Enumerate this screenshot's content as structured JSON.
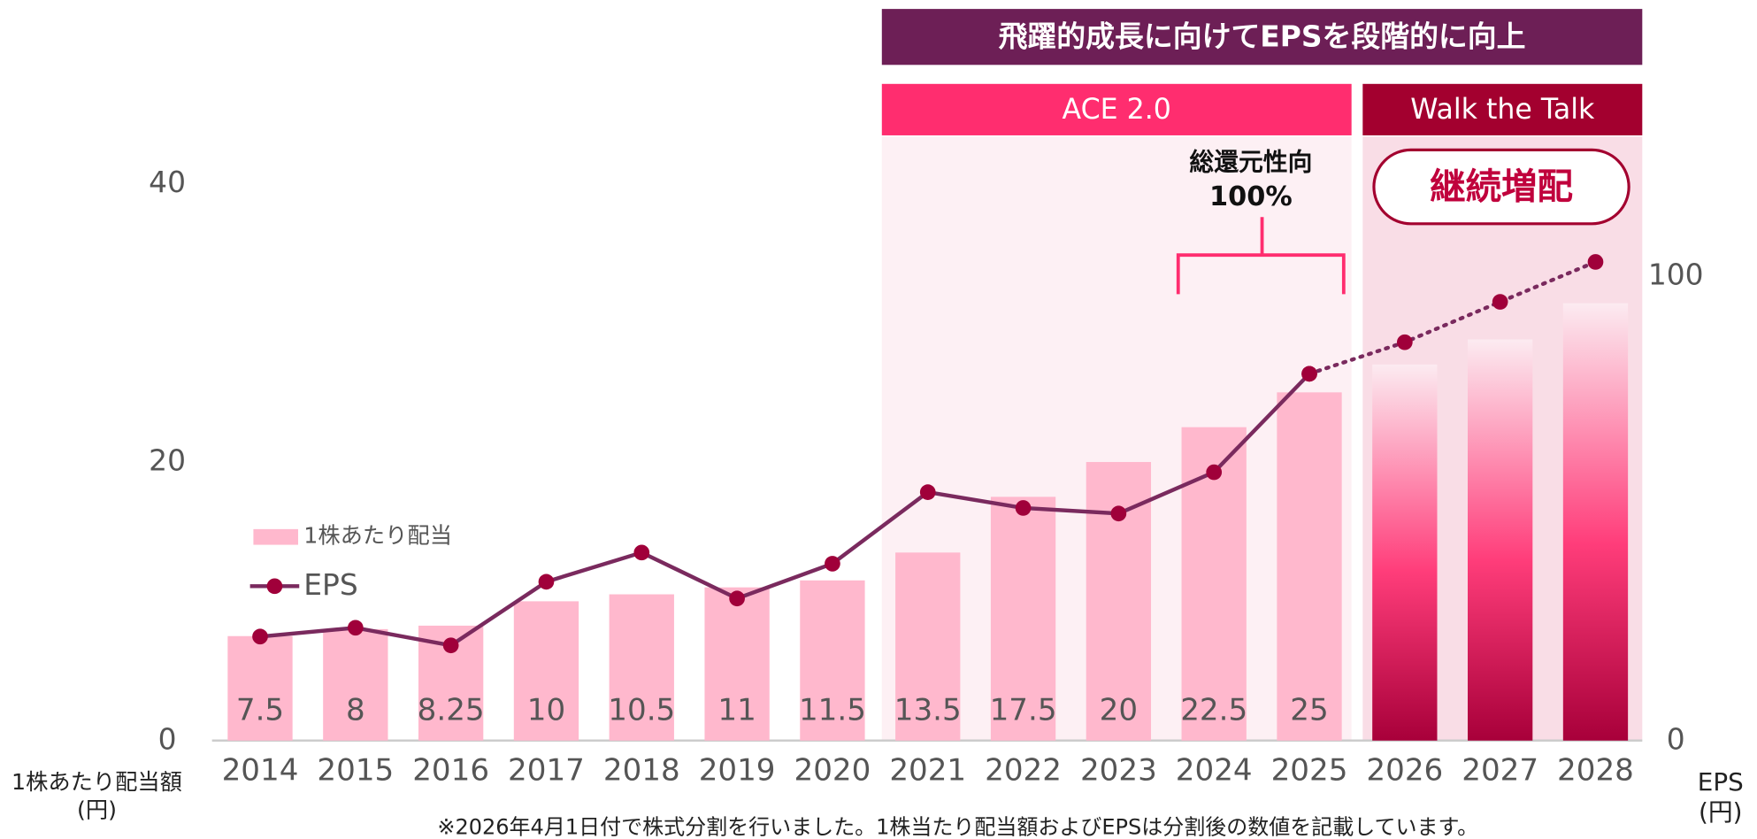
{
  "chart_data": {
    "type": "bar_line",
    "banner": "飛躍的成長に向けてEPSを段階的に向上",
    "phases": [
      "ACE 2.0",
      "Walk the Talk"
    ],
    "annotations": {
      "payout_label": "総還元性向",
      "payout_value": "100%",
      "badge": "継続増配"
    },
    "y_label": "1株あたり配当額",
    "y_unit": "(円)",
    "y2_label": "EPS",
    "y2_unit": "(円)",
    "footnote": "※2026年4月1日付で株式分割を行いました。1株当たり配当額およびEPSは分割後の数値を記載しています。",
    "categories": [
      "2014",
      "2015",
      "2016",
      "2017",
      "2018",
      "2019",
      "2020",
      "2021",
      "2022",
      "2023",
      "2024",
      "2025",
      "2026",
      "2027",
      "2028"
    ],
    "ylim": [
      0,
      40
    ],
    "yticks": [
      0,
      20,
      40
    ],
    "y2lim": [
      0,
      120
    ],
    "y2ticks": [
      0,
      100
    ],
    "series": [
      {
        "name": "1株あたり配当",
        "kind": "bar",
        "color": "#ffb8cd",
        "values": [
          7.5,
          8,
          8.25,
          10,
          10.5,
          11,
          11.5,
          13.5,
          17.5,
          20,
          22.5,
          25,
          null,
          null,
          null
        ]
      },
      {
        "kind": "bar",
        "colors": [
          "#fcebf1",
          "#ff3d7a",
          "#a8003a"
        ],
        "values": [
          null,
          null,
          null,
          null,
          null,
          null,
          null,
          null,
          null,
          null,
          null,
          null,
          27,
          28.8,
          31.4
        ]
      },
      {
        "name": "EPS",
        "kind": "line",
        "axis": "y2",
        "color": "#7a2a5e",
        "marker": "#a0003a",
        "values": [
          22.4,
          24.3,
          20.5,
          34.2,
          40.5,
          30.6,
          38.1,
          53.5,
          50.1,
          48.9,
          57.8,
          79,
          null,
          null,
          null
        ]
      },
      {
        "kind": "line",
        "axis": "y2",
        "dashed": true,
        "color": "#7a2a5e",
        "marker": "#a0003a",
        "values": [
          null,
          null,
          null,
          null,
          null,
          null,
          null,
          null,
          null,
          null,
          null,
          79,
          85.8,
          94.5,
          103.1
        ]
      }
    ]
  }
}
